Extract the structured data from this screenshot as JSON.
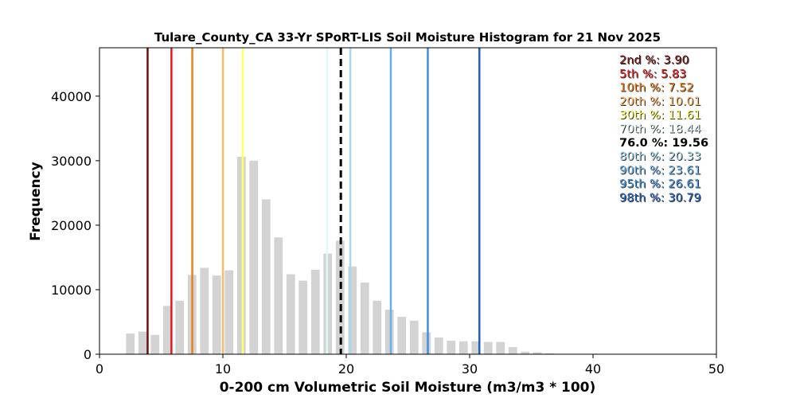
{
  "chart_data": {
    "type": "bar",
    "title": "Tulare_County_CA 33-Yr SPoRT-LIS Soil Moisture Histogram for 21 Nov 2025",
    "xlabel": "0-200 cm Volumetric Soil Moisture (m3/m3 * 100)",
    "ylabel": "Frequency",
    "xlim": [
      0,
      50
    ],
    "ylim": [
      0,
      47500
    ],
    "xticks": [
      "0",
      "10",
      "20",
      "30",
      "40",
      "50"
    ],
    "yticks": [
      "0",
      "10000",
      "20000",
      "30000",
      "40000"
    ],
    "xtick_values": [
      0,
      10,
      20,
      30,
      40,
      50
    ],
    "ytick_values": [
      0,
      10000,
      20000,
      30000,
      40000
    ],
    "bar_color": "#d3d3d3",
    "bar_width": 0.7,
    "bars": {
      "x": [
        2.5,
        3.5,
        4.5,
        5.5,
        6.5,
        7.5,
        8.5,
        9.5,
        10.5,
        11.5,
        12.5,
        13.5,
        14.5,
        15.5,
        16.5,
        17.5,
        18.5,
        19.5,
        20.5,
        21.5,
        22.5,
        23.5,
        24.5,
        25.5,
        26.5,
        27.5,
        28.5,
        29.5,
        30.5,
        31.5,
        32.5,
        33.5,
        34.5,
        35.5,
        36.5
      ],
      "values": [
        3200,
        3500,
        3000,
        7500,
        8300,
        12300,
        13400,
        12200,
        13000,
        30600,
        30000,
        24000,
        18100,
        12400,
        11400,
        13100,
        15600,
        17600,
        13600,
        11100,
        8300,
        6900,
        5800,
        5200,
        3400,
        2600,
        2100,
        2000,
        2000,
        1900,
        1900,
        1100,
        400,
        300,
        150
      ]
    },
    "percentile_lines": [
      {
        "label": "2nd %: 3.90",
        "value": 3.9,
        "color": "#6b0f0f",
        "dashed": false
      },
      {
        "label": "5th %: 5.83",
        "value": 5.83,
        "color": "#e31a1c",
        "dashed": false
      },
      {
        "label": "10th %: 7.52",
        "value": 7.52,
        "color": "#e8821e",
        "dashed": false
      },
      {
        "label": "20th %: 10.01",
        "value": 10.01,
        "color": "#fdb96b",
        "dashed": false
      },
      {
        "label": "30th %: 11.61",
        "value": 11.61,
        "color": "#ffff66",
        "dashed": false
      },
      {
        "label": "70th %: 18.44",
        "value": 18.44,
        "color": "#e0f8f8",
        "dashed": false
      },
      {
        "label": "76.0 %: 19.56",
        "value": 19.56,
        "color": "#000000",
        "dashed": true
      },
      {
        "label": "80th %: 20.33",
        "value": 20.33,
        "color": "#a6d8f0",
        "dashed": false
      },
      {
        "label": "90th %: 23.61",
        "value": 23.61,
        "color": "#6aaee8",
        "dashed": false
      },
      {
        "label": "95th %: 26.61",
        "value": 26.61,
        "color": "#3f8ee0",
        "dashed": false
      },
      {
        "label": "98th %: 30.79",
        "value": 30.79,
        "color": "#1f5fbf",
        "dashed": false
      }
    ],
    "legend_placement": "top-right",
    "grid": false
  }
}
